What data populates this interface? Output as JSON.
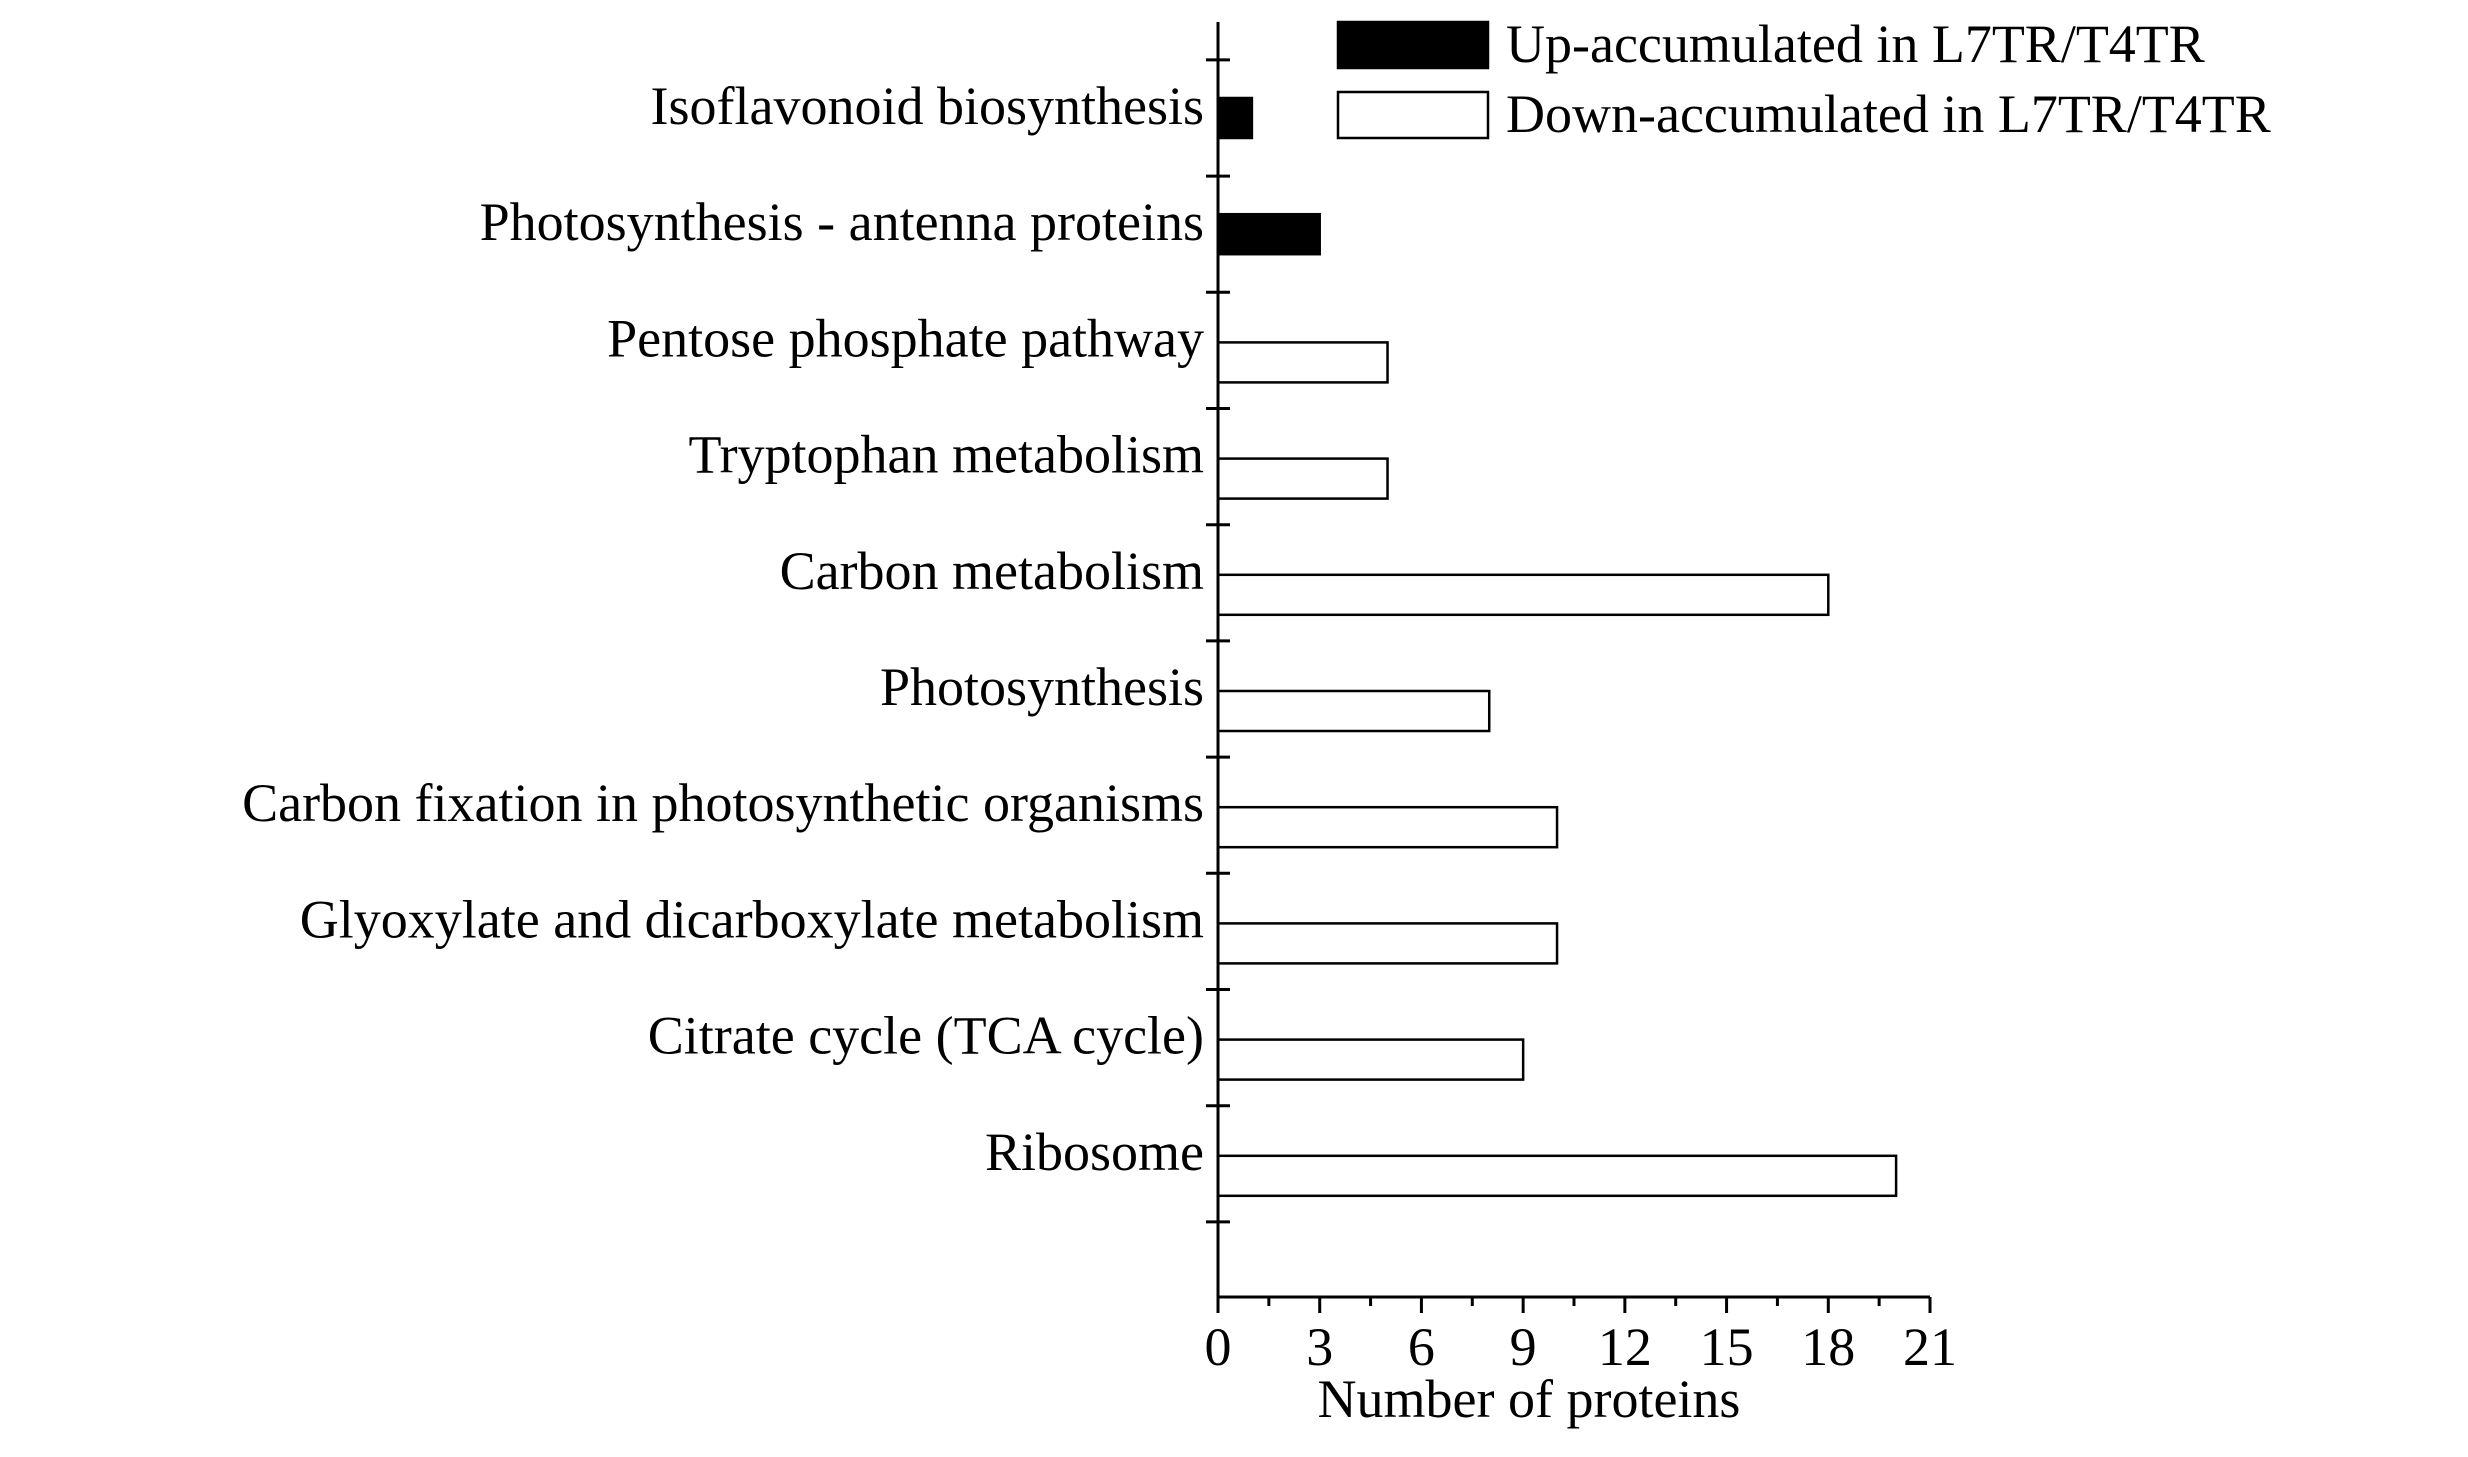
{
  "chart_data": {
    "type": "bar",
    "orientation": "horizontal",
    "categories": [
      "Isoflavonoid biosynthesis",
      "Photosynthesis - antenna proteins",
      "Pentose phosphate pathway",
      "Tryptophan metabolism",
      "Carbon metabolism",
      "Photosynthesis",
      "Carbon fixation in photosynthetic organisms",
      "Glyoxylate and dicarboxylate metabolism",
      "Citrate cycle (TCA cycle)",
      "Ribosome"
    ],
    "series": [
      {
        "name": "Up-accumulated in L7TR/T4TR",
        "color": "#000000",
        "values": [
          1,
          3,
          0,
          0,
          0,
          0,
          0,
          0,
          0,
          0
        ]
      },
      {
        "name": "Down-accumulated in L7TR/T4TR",
        "color": "#ffffff",
        "values": [
          0,
          0,
          5,
          5,
          18,
          8,
          10,
          10,
          9,
          20
        ]
      }
    ],
    "xlabel": "Number of proteins",
    "xlim": [
      0,
      21
    ],
    "xticks": [
      0,
      3,
      6,
      9,
      12,
      15,
      18,
      21
    ],
    "grid": false,
    "legend_position": "top-right"
  }
}
